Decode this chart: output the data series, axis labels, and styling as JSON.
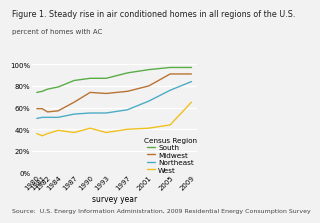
{
  "title": "Figure 1. Steady rise in air conditioned homes in all regions of the U.S.",
  "ylabel": "percent of homes with AC",
  "xlabel": "survey year",
  "source": "Source:  U.S. Energy Information Administration, 2009 Residential Energy Consumption Survey",
  "years": [
    1980,
    1981,
    1982,
    1984,
    1987,
    1990,
    1993,
    1997,
    2001,
    2005,
    2009
  ],
  "South": [
    0.74,
    0.75,
    0.77,
    0.79,
    0.85,
    0.87,
    0.87,
    0.92,
    0.95,
    0.97,
    0.97
  ],
  "Midwest": [
    0.59,
    0.59,
    0.56,
    0.57,
    0.65,
    0.74,
    0.73,
    0.75,
    0.8,
    0.91,
    0.91
  ],
  "Northeast": [
    0.5,
    0.51,
    0.51,
    0.51,
    0.54,
    0.55,
    0.55,
    0.58,
    0.66,
    0.76,
    0.84
  ],
  "West": [
    0.36,
    0.34,
    0.36,
    0.39,
    0.37,
    0.41,
    0.37,
    0.4,
    0.41,
    0.44,
    0.65
  ],
  "colors": {
    "South": "#5aac47",
    "Midwest": "#b87333",
    "Northeast": "#4bacc6",
    "West": "#f0c020"
  },
  "ylim": [
    0,
    1.05
  ],
  "yticks": [
    0,
    0.2,
    0.4,
    0.6,
    0.8,
    1.0
  ],
  "ytick_labels": [
    "0%",
    "20%",
    "40%",
    "60%",
    "80%",
    "100%"
  ],
  "bg_color": "#f2f2f2",
  "grid_color": "#ffffff",
  "legend_title": "Census Region",
  "title_fontsize": 5.8,
  "subtitle_fontsize": 5.0,
  "tick_fontsize": 5.0,
  "legend_fontsize": 5.2,
  "source_fontsize": 4.5
}
